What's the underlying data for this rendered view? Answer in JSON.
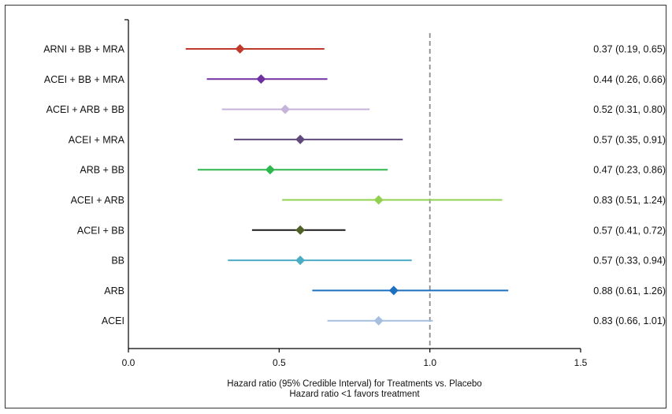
{
  "chart_data": {
    "type": "forest",
    "xlabel_lines": [
      "Hazard ratio (95% Credible Interval) for Treatments vs. Placebo",
      "Hazard ratio <1 favors treatment"
    ],
    "xlim": [
      0,
      1.5
    ],
    "xticks": [
      "0.0",
      "0.5",
      "1.0",
      "1.5"
    ],
    "reference_line": 1.0,
    "rows": [
      {
        "label": "ARNI + BB + MRA",
        "estimate": 0.37,
        "lower": 0.19,
        "upper": 0.65,
        "annotation": "0.37 (0.19, 0.65)",
        "color": "#c0392b"
      },
      {
        "label": "ACEI + BB + MRA",
        "estimate": 0.44,
        "lower": 0.26,
        "upper": 0.66,
        "annotation": "0.44 (0.26, 0.66)",
        "color": "#7030a0"
      },
      {
        "label": "ACEI + ARB + BB",
        "estimate": 0.52,
        "lower": 0.31,
        "upper": 0.8,
        "annotation": "0.52 (0.31, 0.80)",
        "color": "#c5b3d9"
      },
      {
        "label": "ACEI + MRA",
        "estimate": 0.57,
        "lower": 0.35,
        "upper": 0.91,
        "annotation": "0.57 (0.35, 0.91)",
        "color": "#604a7b"
      },
      {
        "label": "ARB + BB",
        "estimate": 0.47,
        "lower": 0.23,
        "upper": 0.86,
        "annotation": "0.47 (0.23, 0.86)",
        "color": "#2db84d"
      },
      {
        "label": "ACEI + ARB",
        "estimate": 0.83,
        "lower": 0.51,
        "upper": 1.24,
        "annotation": "0.83 (0.51, 1.24)",
        "color": "#92d050"
      },
      {
        "label": "ACEI + BB",
        "estimate": 0.57,
        "lower": 0.41,
        "upper": 0.72,
        "annotation": "0.57 (0.41, 0.72)",
        "color": "#1a1a1a",
        "marker_color": "#4f6228"
      },
      {
        "label": "BB",
        "estimate": 0.57,
        "lower": 0.33,
        "upper": 0.94,
        "annotation": "0.57 (0.33, 0.94)",
        "color": "#4bacc6"
      },
      {
        "label": "ARB",
        "estimate": 0.88,
        "lower": 0.61,
        "upper": 1.26,
        "annotation": "0.88 (0.61, 1.26)",
        "color": "#1f6fbf"
      },
      {
        "label": "ACEI",
        "estimate": 0.83,
        "lower": 0.66,
        "upper": 1.01,
        "annotation": "0.83 (0.66, 1.01)",
        "color": "#a6bfdf"
      }
    ]
  }
}
